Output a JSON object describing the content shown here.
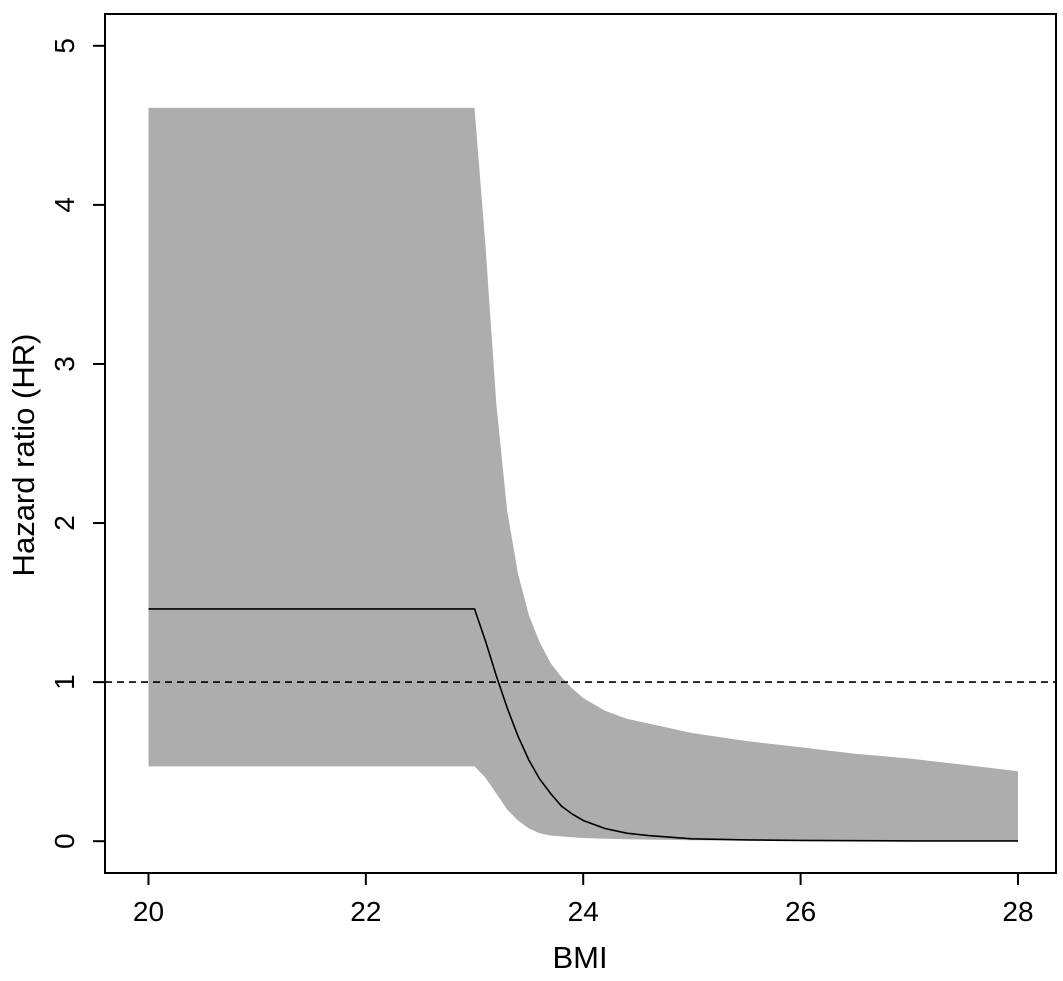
{
  "chart_data": {
    "type": "area",
    "xlabel": "BMI",
    "ylabel": "Hazard ratio (HR)",
    "xlim": [
      19.6,
      28.35
    ],
    "ylim": [
      -0.2,
      5.2
    ],
    "x_ticks": [
      20,
      22,
      24,
      26,
      28
    ],
    "y_ticks": [
      0,
      1,
      2,
      3,
      4,
      5
    ],
    "grid": false,
    "reference_line": {
      "y": 1,
      "style": "dashed"
    },
    "colors": {
      "band": "#adadad",
      "line": "#000000",
      "reference": "#000000"
    },
    "series": [
      {
        "role": "estimate",
        "x": [
          20,
          23,
          23.1,
          23.2,
          23.3,
          23.4,
          23.5,
          23.6,
          23.7,
          23.8,
          23.9,
          24,
          24.2,
          24.4,
          24.6,
          24.8,
          25,
          25.5,
          26,
          27,
          28
        ],
        "y": [
          1.46,
          1.46,
          1.26,
          1.04,
          0.84,
          0.66,
          0.51,
          0.39,
          0.3,
          0.22,
          0.17,
          0.13,
          0.08,
          0.05,
          0.035,
          0.025,
          0.015,
          0.008,
          0.005,
          0.002,
          0.002
        ]
      },
      {
        "role": "confidence_band",
        "x": [
          20,
          23,
          23.1,
          23.2,
          23.3,
          23.4,
          23.5,
          23.6,
          23.7,
          23.8,
          23.9,
          24,
          24.2,
          24.4,
          24.6,
          24.8,
          25,
          25.5,
          26,
          26.5,
          27,
          27.5,
          28
        ],
        "lower": [
          0.47,
          0.47,
          0.4,
          0.3,
          0.2,
          0.13,
          0.08,
          0.05,
          0.035,
          0.03,
          0.025,
          0.02,
          0.015,
          0.012,
          0.01,
          0.008,
          0.006,
          0.004,
          0.003,
          0.002,
          0.002,
          0.002,
          0.002
        ],
        "upper": [
          4.61,
          4.61,
          3.75,
          2.75,
          2.08,
          1.68,
          1.42,
          1.25,
          1.12,
          1.03,
          0.96,
          0.9,
          0.82,
          0.77,
          0.74,
          0.71,
          0.68,
          0.63,
          0.59,
          0.55,
          0.52,
          0.48,
          0.44
        ]
      }
    ]
  }
}
